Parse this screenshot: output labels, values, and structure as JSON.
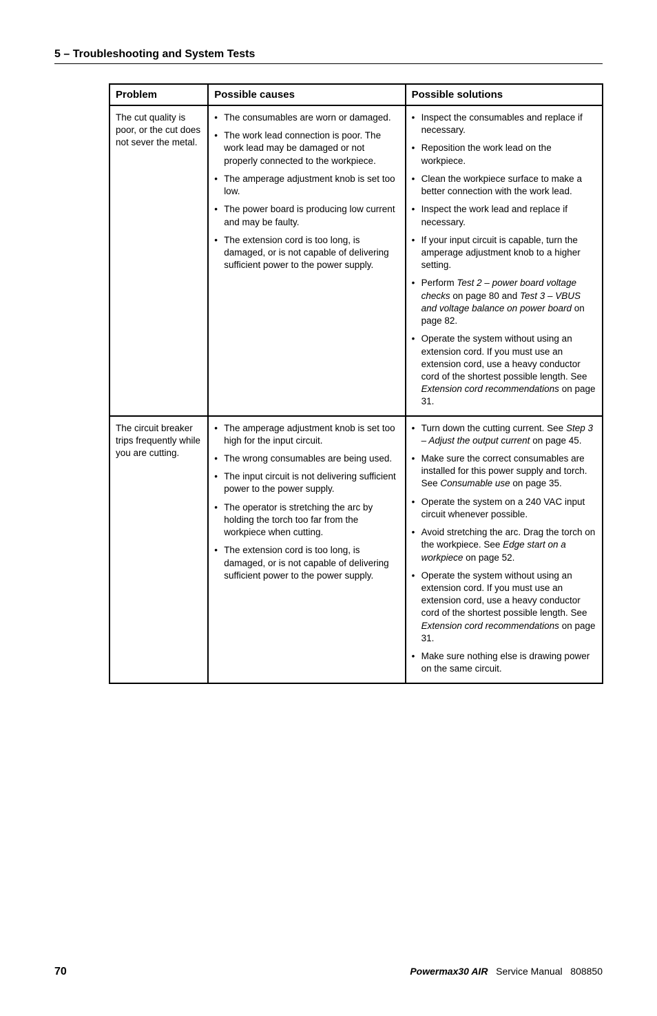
{
  "section": {
    "number": "5",
    "separator": " – ",
    "title": "Troubleshooting and System Tests"
  },
  "table": {
    "headers": {
      "problem": "Problem",
      "causes": "Possible causes",
      "solutions": "Possible solutions"
    },
    "rows": [
      {
        "problem": "The cut quality is poor, or the cut does not sever the metal.",
        "causes": [
          "The consumables are worn or damaged.",
          "The work lead connection is poor. The work lead may be damaged or not properly connected to the workpiece.",
          "The amperage adjustment knob is set too low.",
          "The power board is producing low current and may be faulty.",
          "The extension cord is too long, is damaged, or is not capable of delivering sufficient power to the power supply."
        ],
        "solutions": [
          "Inspect the consumables and replace if necessary.",
          "Reposition the work lead on the workpiece.",
          "Clean the workpiece surface to make a better connection with the work lead.",
          "Inspect the work lead and replace if necessary.",
          "If your input circuit is capable, turn the amperage adjustment knob to a higher setting.",
          "Perform <em>Test 2 – power board voltage checks</em> on page 80 and <em>Test 3 – VBUS and voltage balance on power board</em> on page 82.",
          "Operate the system without using an extension cord. If you must use an extension cord, use a heavy conductor cord of the shortest possible length. See <em>Extension cord recommendations</em> on page 31."
        ]
      },
      {
        "problem": "The circuit breaker trips frequently while you are cutting.",
        "causes": [
          "The amperage adjustment knob is set too high for the input circuit.",
          "The wrong consumables are being used.",
          "The input circuit is not delivering sufficient power to the power supply.",
          "The operator is stretching the arc by holding the torch too far from the workpiece when cutting.",
          "The extension cord is too long, is damaged, or is not capable of delivering sufficient power to the power supply."
        ],
        "solutions": [
          "Turn down the cutting current. See <em>Step 3 – Adjust the output current</em> on page 45.",
          "Make sure the correct consumables are installed for this power supply and torch. See <em>Consumable use</em> on page 35.",
          "Operate the system on a 240 VAC input circuit whenever possible.",
          "Avoid stretching the arc. Drag the torch on the workpiece. See <em>Edge start on a workpiece</em> on page 52.",
          "Operate the system without using an extension cord. If you must use an extension cord, use a heavy conductor cord of the shortest possible length. See <em>Extension cord recommendations</em> on page 31.",
          "Make sure nothing else is drawing power on the same circuit."
        ]
      }
    ]
  },
  "footer": {
    "page_number": "70",
    "product": "Powermax30 AIR",
    "doc_type": "Service Manual",
    "doc_number": "808850"
  }
}
